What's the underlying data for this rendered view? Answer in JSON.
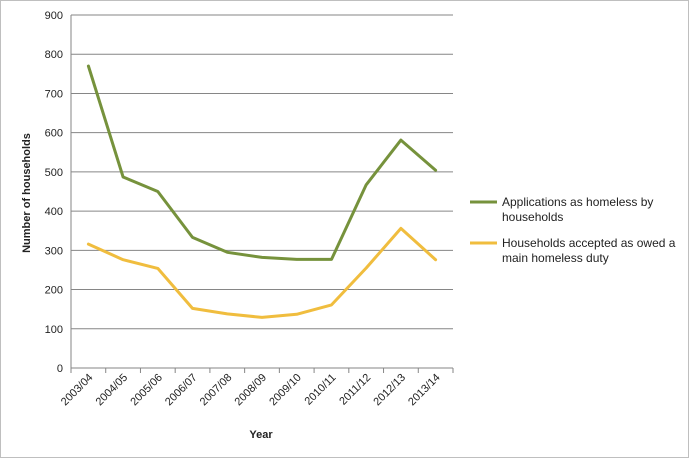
{
  "chart_data": {
    "type": "line",
    "categories": [
      "2003/04",
      "2004/05",
      "2005/06",
      "2006/07",
      "2007/08",
      "2008/09",
      "2009/10",
      "2010/11",
      "2011/12",
      "2012/13",
      "2013/14"
    ],
    "series": [
      {
        "name": "Applications as homeless by households",
        "legend_lines": [
          "Applications as homeless by",
          "households"
        ],
        "color": "#76923c",
        "values": [
          770,
          487,
          450,
          333,
          295,
          282,
          277,
          277,
          467,
          581,
          504
        ]
      },
      {
        "name": "Households accepted as owed a main homeless duty",
        "legend_lines": [
          "Households accepted as owed a",
          "main homeless duty"
        ],
        "color": "#f0bd3e",
        "values": [
          316,
          276,
          254,
          152,
          138,
          129,
          137,
          161,
          255,
          356,
          276
        ]
      }
    ],
    "xlabel": "Year",
    "ylabel": "Number of households",
    "ylim": [
      0,
      900
    ],
    "yticks": [
      0,
      100,
      200,
      300,
      400,
      500,
      600,
      700,
      800,
      900
    ],
    "grid": true,
    "legend_position": "right"
  }
}
